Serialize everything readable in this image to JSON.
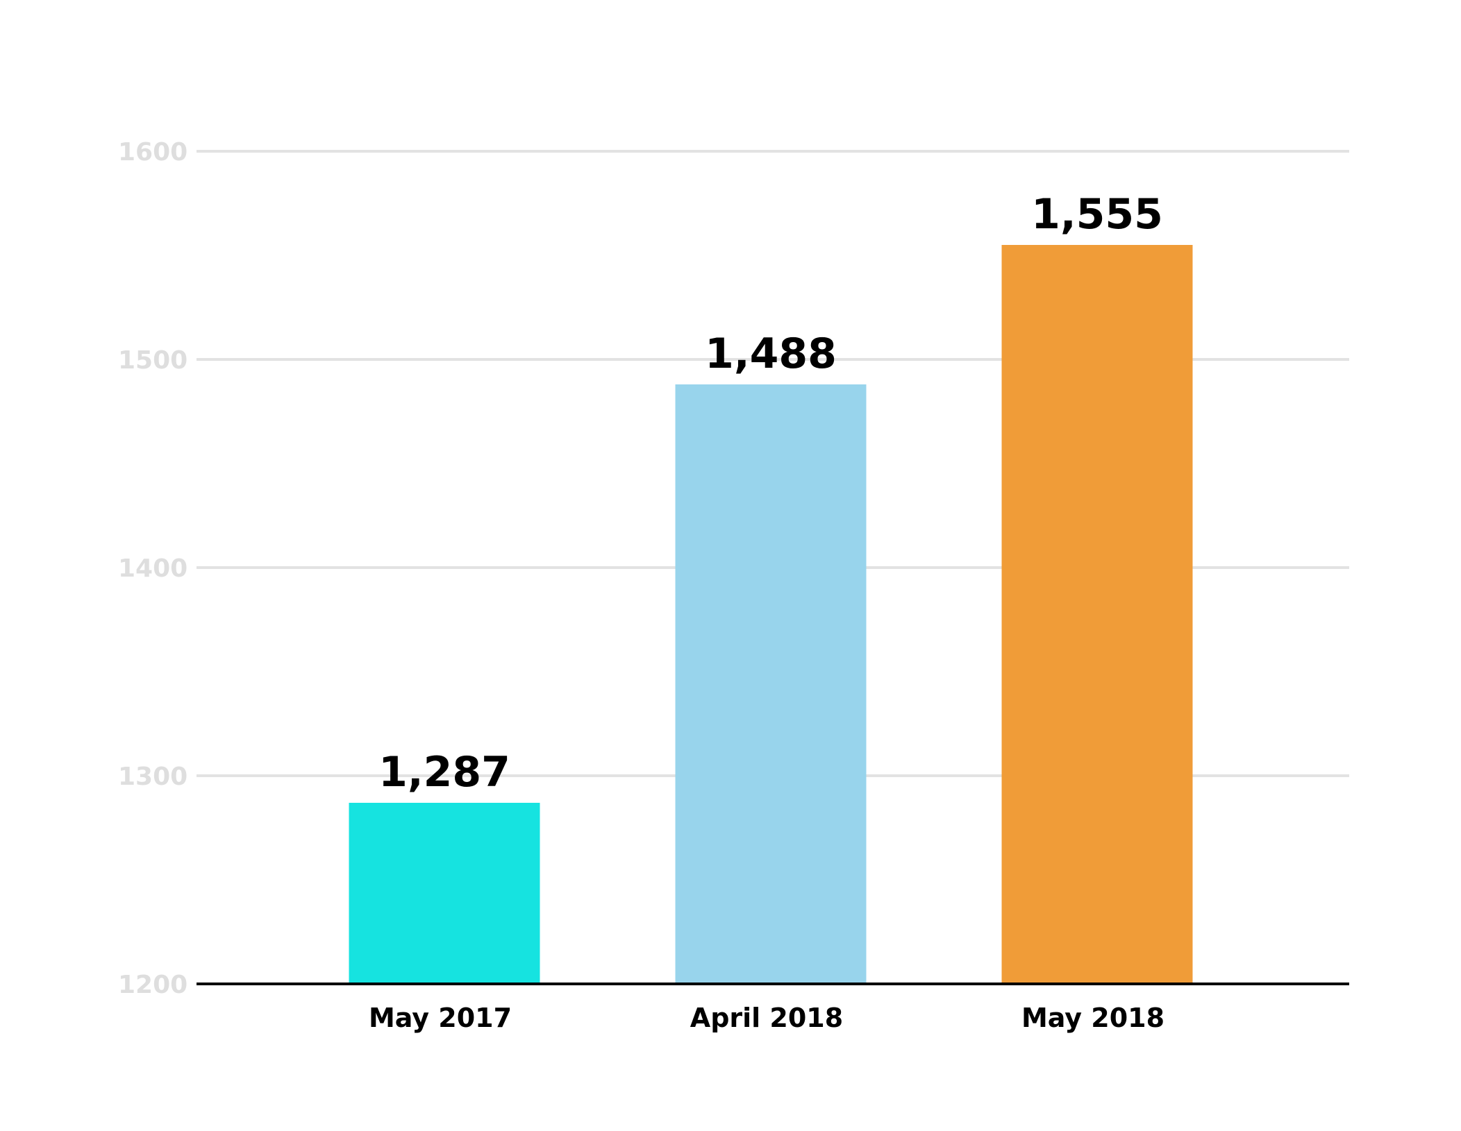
{
  "chart_data": {
    "type": "bar",
    "categories": [
      "May 2017",
      "April 2018",
      "May 2018"
    ],
    "values": [
      1287,
      1488,
      1555
    ],
    "value_labels": [
      "1,287",
      "1,488",
      "1,555"
    ],
    "bar_colors": [
      "#16e3e0",
      "#98d4ec",
      "#f09c38"
    ],
    "title": "",
    "xlabel": "",
    "ylabel": "",
    "ylim": [
      1200,
      1600
    ],
    "yticks": [
      1200,
      1300,
      1400,
      1500,
      1600
    ],
    "grid": true,
    "gridline_color": "#e2e2e2",
    "axis_color": "#000000"
  }
}
